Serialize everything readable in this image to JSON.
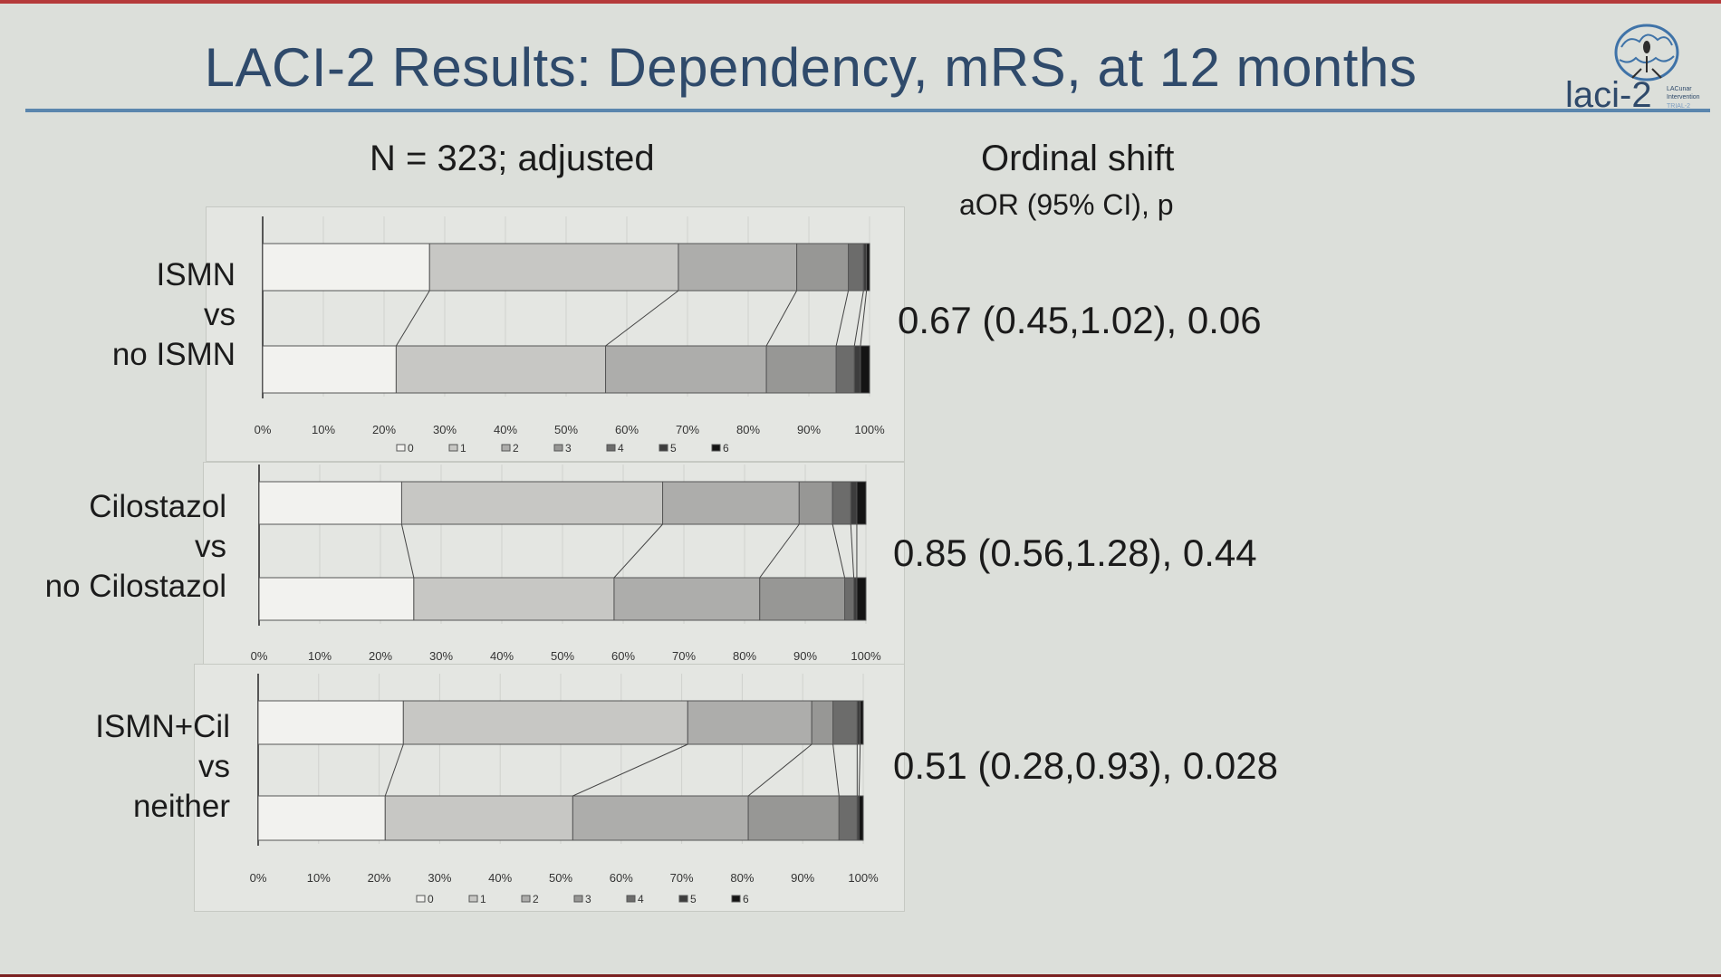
{
  "title": "LACI-2 Results: Dependency, mRS, at 12 months",
  "logo": {
    "text": "laci-2",
    "small_lines": [
      "LACunar",
      "Intervention",
      "TRIAL-2"
    ]
  },
  "left_heading": "N = 323; adjusted",
  "right_heading": "Ordinal shift",
  "right_subheading": "aOR (95% CI), p",
  "panels": [
    {
      "label_lines": [
        "ISMN",
        "vs",
        "no ISMN"
      ],
      "stat": "0.67 (0.45,1.02), 0.06",
      "legend": true
    },
    {
      "label_lines": [
        "Cilostazol",
        "vs",
        "no Cilostazol"
      ],
      "stat": "0.85 (0.56,1.28), 0.44",
      "legend": false
    },
    {
      "label_lines": [
        "ISMN+Cil",
        "vs",
        "neither"
      ],
      "stat": "0.51 (0.28,0.93), 0.028",
      "legend": true
    }
  ],
  "chart_data": [
    {
      "type": "bar",
      "orientation": "horizontal-stacked-100",
      "categories": [
        "ISMN",
        "no ISMN"
      ],
      "series": [
        {
          "name": "0",
          "values": [
            27.5,
            22
          ]
        },
        {
          "name": "1",
          "values": [
            41,
            34.5
          ]
        },
        {
          "name": "2",
          "values": [
            19.5,
            26.5
          ]
        },
        {
          "name": "3",
          "values": [
            8.5,
            11.5
          ]
        },
        {
          "name": "4",
          "values": [
            2.5,
            3
          ]
        },
        {
          "name": "5",
          "values": [
            0.5,
            1
          ]
        },
        {
          "name": "6",
          "values": [
            0.5,
            1.5
          ]
        }
      ],
      "xlim": [
        0,
        100
      ],
      "xticks": [
        "0%",
        "10%",
        "20%",
        "30%",
        "40%",
        "50%",
        "60%",
        "70%",
        "80%",
        "90%",
        "100%"
      ],
      "legend": "bottom"
    },
    {
      "type": "bar",
      "orientation": "horizontal-stacked-100",
      "categories": [
        "Cilostazol",
        "no Cilostazol"
      ],
      "series": [
        {
          "name": "0",
          "values": [
            23.5,
            25.5
          ]
        },
        {
          "name": "1",
          "values": [
            43,
            33
          ]
        },
        {
          "name": "2",
          "values": [
            22.5,
            24
          ]
        },
        {
          "name": "3",
          "values": [
            5.5,
            14
          ]
        },
        {
          "name": "4",
          "values": [
            3,
            1.5
          ]
        },
        {
          "name": "5",
          "values": [
            1,
            0.5
          ]
        },
        {
          "name": "6",
          "values": [
            1.5,
            1.5
          ]
        }
      ],
      "xlim": [
        0,
        100
      ],
      "xticks": [
        "0%",
        "10%",
        "20%",
        "30%",
        "40%",
        "50%",
        "60%",
        "70%",
        "80%",
        "90%",
        "100%"
      ],
      "legend": "none"
    },
    {
      "type": "bar",
      "orientation": "horizontal-stacked-100",
      "categories": [
        "ISMN+Cil",
        "neither"
      ],
      "series": [
        {
          "name": "0",
          "values": [
            24,
            21
          ]
        },
        {
          "name": "1",
          "values": [
            47,
            31
          ]
        },
        {
          "name": "2",
          "values": [
            20.5,
            29
          ]
        },
        {
          "name": "3",
          "values": [
            3.5,
            15
          ]
        },
        {
          "name": "4",
          "values": [
            4,
            3
          ]
        },
        {
          "name": "5",
          "values": [
            0.5,
            0.3
          ]
        },
        {
          "name": "6",
          "values": [
            0.5,
            0.7
          ]
        }
      ],
      "xlim": [
        0,
        100
      ],
      "xticks": [
        "0%",
        "10%",
        "20%",
        "30%",
        "40%",
        "50%",
        "60%",
        "70%",
        "80%",
        "90%",
        "100%"
      ],
      "legend": "bottom"
    }
  ],
  "colors": [
    "#f2f2ef",
    "#c7c7c4",
    "#adadab",
    "#979795",
    "#6c6c6b",
    "#3d3d3d",
    "#141414"
  ]
}
